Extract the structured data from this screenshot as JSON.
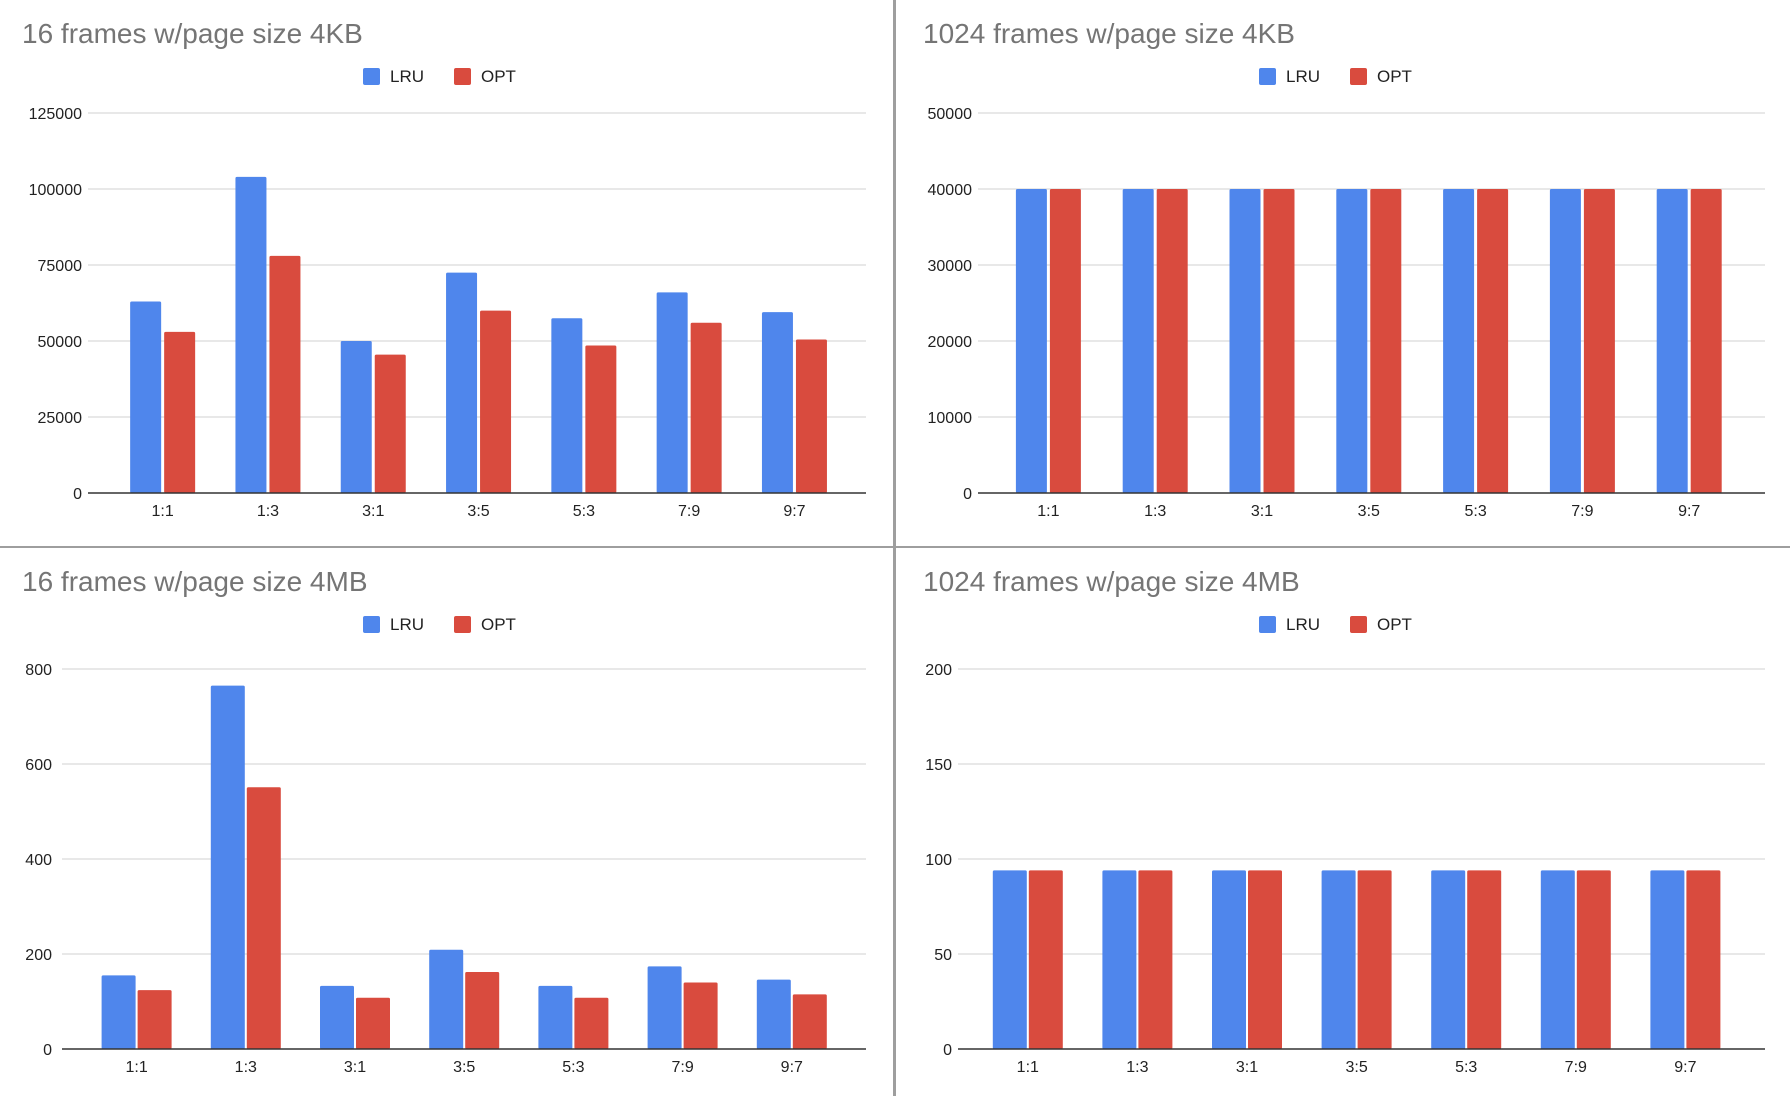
{
  "colors": {
    "lru": "#4f86ec",
    "opt": "#d94b3e",
    "title": "#757575",
    "grid": "#d9d9d9",
    "axis": "#333333",
    "text": "#222222"
  },
  "chart_data": [
    {
      "type": "bar",
      "title": "16 frames w/page size 4KB",
      "categories": [
        "1:1",
        "1:3",
        "3:1",
        "3:5",
        "5:3",
        "7:9",
        "9:7"
      ],
      "series": [
        {
          "name": "LRU",
          "values": [
            63000,
            104000,
            50000,
            72500,
            57500,
            66000,
            59500
          ]
        },
        {
          "name": "OPT",
          "values": [
            53000,
            78000,
            45500,
            60000,
            48500,
            56000,
            50500
          ]
        }
      ],
      "yticks": [
        "0",
        "25000",
        "50000",
        "75000",
        "100000",
        "125000"
      ],
      "ylim": [
        0,
        125000
      ],
      "legend": "top-center",
      "grid": true
    },
    {
      "type": "bar",
      "title": "1024 frames w/page size 4KB",
      "categories": [
        "1:1",
        "1:3",
        "3:1",
        "3:5",
        "5:3",
        "7:9",
        "9:7"
      ],
      "series": [
        {
          "name": "LRU",
          "values": [
            40000,
            40000,
            40000,
            40000,
            40000,
            40000,
            40000
          ]
        },
        {
          "name": "OPT",
          "values": [
            40000,
            40000,
            40000,
            40000,
            40000,
            40000,
            40000
          ]
        }
      ],
      "yticks": [
        "0",
        "10000",
        "20000",
        "30000",
        "40000",
        "50000"
      ],
      "ylim": [
        0,
        50000
      ],
      "legend": "top-center",
      "grid": true
    },
    {
      "type": "bar",
      "title": "16 frames w/page size 4MB",
      "categories": [
        "1:1",
        "1:3",
        "3:1",
        "3:5",
        "5:3",
        "7:9",
        "9:7"
      ],
      "series": [
        {
          "name": "LRU",
          "values": [
            155,
            765,
            133,
            209,
            133,
            174,
            146
          ]
        },
        {
          "name": "OPT",
          "values": [
            124,
            551,
            108,
            162,
            108,
            140,
            115
          ]
        }
      ],
      "yticks": [
        "0",
        "200",
        "400",
        "600",
        "800"
      ],
      "ylim": [
        0,
        800
      ],
      "legend": "top-center",
      "grid": true
    },
    {
      "type": "bar",
      "title": "1024 frames w/page size 4MB",
      "categories": [
        "1:1",
        "1:3",
        "3:1",
        "3:5",
        "5:3",
        "7:9",
        "9:7"
      ],
      "series": [
        {
          "name": "LRU",
          "values": [
            94,
            94,
            94,
            94,
            94,
            94,
            94
          ]
        },
        {
          "name": "OPT",
          "values": [
            94,
            94,
            94,
            94,
            94,
            94,
            94
          ]
        }
      ],
      "yticks": [
        "0",
        "50",
        "100",
        "150",
        "200"
      ],
      "ylim": [
        0,
        200
      ],
      "legend": "top-center",
      "grid": true
    }
  ]
}
